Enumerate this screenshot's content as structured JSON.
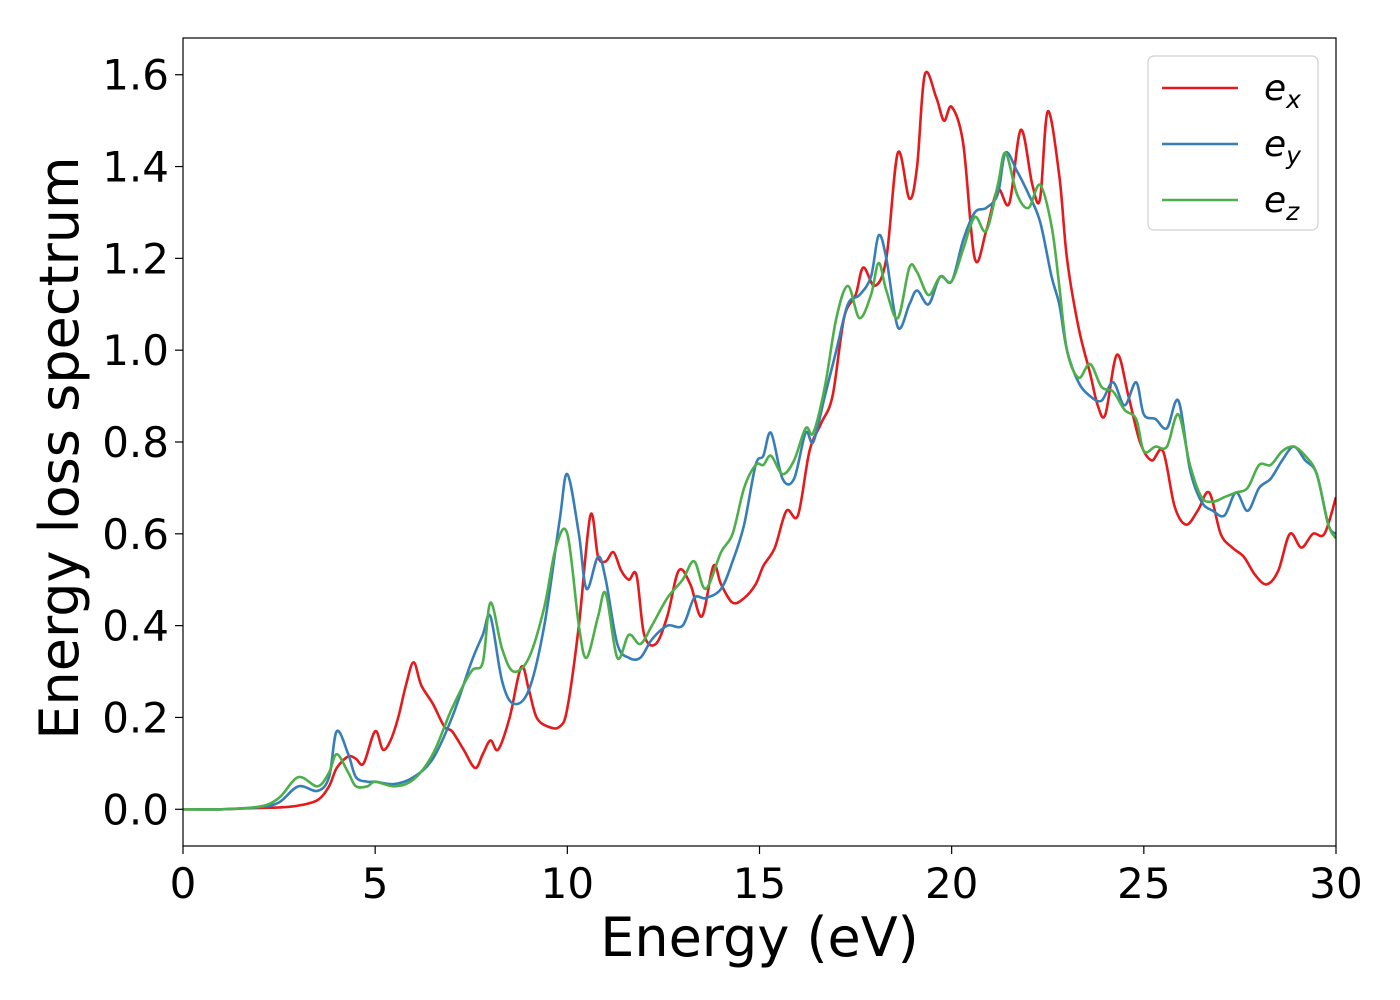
{
  "chart_data": {
    "type": "line",
    "title": "",
    "xlabel": "Energy (eV)",
    "ylabel": "Energy loss spectrum",
    "xlim": [
      0,
      30
    ],
    "ylim": [
      -0.08,
      1.68
    ],
    "xticks": [
      0,
      5,
      10,
      15,
      20,
      25,
      30
    ],
    "yticks": [
      0.0,
      0.2,
      0.4,
      0.6,
      0.8,
      1.0,
      1.2,
      1.4,
      1.6
    ],
    "xtick_labels": [
      "0",
      "5",
      "10",
      "15",
      "20",
      "25",
      "30"
    ],
    "ytick_labels": [
      "0.0",
      "0.2",
      "0.4",
      "0.6",
      "0.8",
      "1.0",
      "1.2",
      "1.4",
      "1.6"
    ],
    "grid": false,
    "legend_position": "top-right",
    "series": [
      {
        "name": "e",
        "subscript": "x",
        "color": "#e41a1c",
        "points": [
          [
            0,
            0
          ],
          [
            1,
            0
          ],
          [
            2,
            0.003
          ],
          [
            2.5,
            0.004
          ],
          [
            3,
            0.008
          ],
          [
            3.5,
            0.02
          ],
          [
            3.8,
            0.05
          ],
          [
            4,
            0.09
          ],
          [
            4.3,
            0.115
          ],
          [
            4.5,
            0.11
          ],
          [
            4.7,
            0.1
          ],
          [
            5,
            0.17
          ],
          [
            5.2,
            0.13
          ],
          [
            5.4,
            0.15
          ],
          [
            5.6,
            0.2
          ],
          [
            5.8,
            0.27
          ],
          [
            6,
            0.32
          ],
          [
            6.2,
            0.27
          ],
          [
            6.5,
            0.23
          ],
          [
            6.8,
            0.18
          ],
          [
            7,
            0.17
          ],
          [
            7.3,
            0.13
          ],
          [
            7.6,
            0.09
          ],
          [
            7.8,
            0.12
          ],
          [
            8,
            0.15
          ],
          [
            8.2,
            0.13
          ],
          [
            8.5,
            0.2
          ],
          [
            8.8,
            0.31
          ],
          [
            9,
            0.26
          ],
          [
            9.2,
            0.2
          ],
          [
            9.5,
            0.18
          ],
          [
            9.8,
            0.18
          ],
          [
            10,
            0.22
          ],
          [
            10.3,
            0.4
          ],
          [
            10.6,
            0.64
          ],
          [
            10.8,
            0.55
          ],
          [
            11,
            0.54
          ],
          [
            11.2,
            0.56
          ],
          [
            11.4,
            0.52
          ],
          [
            11.6,
            0.5
          ],
          [
            11.8,
            0.51
          ],
          [
            12,
            0.38
          ],
          [
            12.3,
            0.36
          ],
          [
            12.6,
            0.42
          ],
          [
            12.9,
            0.52
          ],
          [
            13.2,
            0.49
          ],
          [
            13.5,
            0.42
          ],
          [
            13.8,
            0.53
          ],
          [
            14,
            0.49
          ],
          [
            14.3,
            0.45
          ],
          [
            14.6,
            0.46
          ],
          [
            14.9,
            0.49
          ],
          [
            15.1,
            0.53
          ],
          [
            15.4,
            0.57
          ],
          [
            15.7,
            0.65
          ],
          [
            16,
            0.64
          ],
          [
            16.3,
            0.78
          ],
          [
            16.6,
            0.84
          ],
          [
            16.9,
            0.9
          ],
          [
            17.2,
            1.07
          ],
          [
            17.5,
            1.12
          ],
          [
            17.7,
            1.18
          ],
          [
            18,
            1.14
          ],
          [
            18.3,
            1.2
          ],
          [
            18.6,
            1.43
          ],
          [
            18.9,
            1.33
          ],
          [
            19.1,
            1.4
          ],
          [
            19.3,
            1.6
          ],
          [
            19.6,
            1.55
          ],
          [
            19.8,
            1.5
          ],
          [
            20,
            1.53
          ],
          [
            20.3,
            1.45
          ],
          [
            20.6,
            1.2
          ],
          [
            20.9,
            1.26
          ],
          [
            21.2,
            1.35
          ],
          [
            21.5,
            1.32
          ],
          [
            21.8,
            1.48
          ],
          [
            22.1,
            1.36
          ],
          [
            22.3,
            1.33
          ],
          [
            22.5,
            1.52
          ],
          [
            22.8,
            1.38
          ],
          [
            23,
            1.2
          ],
          [
            23.3,
            1.05
          ],
          [
            23.6,
            0.95
          ],
          [
            23.8,
            0.88
          ],
          [
            24,
            0.86
          ],
          [
            24.3,
            0.99
          ],
          [
            24.6,
            0.9
          ],
          [
            24.9,
            0.8
          ],
          [
            25.2,
            0.76
          ],
          [
            25.5,
            0.78
          ],
          [
            25.8,
            0.66
          ],
          [
            26.1,
            0.62
          ],
          [
            26.4,
            0.65
          ],
          [
            26.7,
            0.69
          ],
          [
            27,
            0.6
          ],
          [
            27.3,
            0.57
          ],
          [
            27.6,
            0.55
          ],
          [
            27.9,
            0.51
          ],
          [
            28.2,
            0.49
          ],
          [
            28.5,
            0.52
          ],
          [
            28.8,
            0.6
          ],
          [
            29.1,
            0.57
          ],
          [
            29.4,
            0.6
          ],
          [
            29.7,
            0.6
          ],
          [
            30,
            0.68
          ]
        ]
      },
      {
        "name": "e",
        "subscript": "y",
        "color": "#377eb8",
        "points": [
          [
            0,
            0
          ],
          [
            1,
            0
          ],
          [
            2,
            0.005
          ],
          [
            2.5,
            0.015
          ],
          [
            3,
            0.05
          ],
          [
            3.5,
            0.04
          ],
          [
            3.8,
            0.07
          ],
          [
            4,
            0.17
          ],
          [
            4.3,
            0.12
          ],
          [
            4.5,
            0.07
          ],
          [
            4.8,
            0.06
          ],
          [
            5,
            0.06
          ],
          [
            5.5,
            0.055
          ],
          [
            6,
            0.07
          ],
          [
            6.5,
            0.11
          ],
          [
            7,
            0.2
          ],
          [
            7.5,
            0.32
          ],
          [
            7.8,
            0.38
          ],
          [
            8,
            0.42
          ],
          [
            8.3,
            0.28
          ],
          [
            8.6,
            0.23
          ],
          [
            9,
            0.26
          ],
          [
            9.4,
            0.4
          ],
          [
            9.8,
            0.63
          ],
          [
            10,
            0.73
          ],
          [
            10.3,
            0.6
          ],
          [
            10.5,
            0.48
          ],
          [
            10.8,
            0.55
          ],
          [
            11,
            0.5
          ],
          [
            11.3,
            0.36
          ],
          [
            11.6,
            0.33
          ],
          [
            11.9,
            0.33
          ],
          [
            12.2,
            0.37
          ],
          [
            12.6,
            0.4
          ],
          [
            13,
            0.4
          ],
          [
            13.3,
            0.46
          ],
          [
            13.6,
            0.46
          ],
          [
            14,
            0.48
          ],
          [
            14.3,
            0.54
          ],
          [
            14.6,
            0.62
          ],
          [
            14.9,
            0.75
          ],
          [
            15.1,
            0.77
          ],
          [
            15.3,
            0.82
          ],
          [
            15.6,
            0.72
          ],
          [
            15.9,
            0.72
          ],
          [
            16.2,
            0.82
          ],
          [
            16.4,
            0.8
          ],
          [
            16.7,
            0.9
          ],
          [
            17,
            1.0
          ],
          [
            17.3,
            1.1
          ],
          [
            17.6,
            1.12
          ],
          [
            17.9,
            1.16
          ],
          [
            18.1,
            1.25
          ],
          [
            18.3,
            1.2
          ],
          [
            18.6,
            1.05
          ],
          [
            18.9,
            1.1
          ],
          [
            19.1,
            1.13
          ],
          [
            19.4,
            1.1
          ],
          [
            19.7,
            1.16
          ],
          [
            20,
            1.15
          ],
          [
            20.3,
            1.24
          ],
          [
            20.6,
            1.3
          ],
          [
            20.9,
            1.31
          ],
          [
            21.2,
            1.34
          ],
          [
            21.4,
            1.43
          ],
          [
            21.7,
            1.39
          ],
          [
            22,
            1.34
          ],
          [
            22.3,
            1.28
          ],
          [
            22.6,
            1.16
          ],
          [
            22.8,
            1.1
          ],
          [
            23,
            1.0
          ],
          [
            23.3,
            0.93
          ],
          [
            23.6,
            0.9
          ],
          [
            23.9,
            0.89
          ],
          [
            24.2,
            0.93
          ],
          [
            24.5,
            0.88
          ],
          [
            24.8,
            0.93
          ],
          [
            25,
            0.86
          ],
          [
            25.3,
            0.85
          ],
          [
            25.6,
            0.83
          ],
          [
            25.9,
            0.89
          ],
          [
            26.2,
            0.74
          ],
          [
            26.5,
            0.67
          ],
          [
            26.8,
            0.65
          ],
          [
            27.1,
            0.64
          ],
          [
            27.4,
            0.69
          ],
          [
            27.7,
            0.65
          ],
          [
            28,
            0.7
          ],
          [
            28.3,
            0.72
          ],
          [
            28.6,
            0.76
          ],
          [
            28.9,
            0.79
          ],
          [
            29.2,
            0.76
          ],
          [
            29.5,
            0.73
          ],
          [
            29.8,
            0.62
          ],
          [
            30,
            0.6
          ]
        ]
      },
      {
        "name": "e",
        "subscript": "z",
        "color": "#4daf4a",
        "points": [
          [
            0,
            0
          ],
          [
            1,
            0
          ],
          [
            2,
            0.006
          ],
          [
            2.5,
            0.025
          ],
          [
            3,
            0.07
          ],
          [
            3.5,
            0.05
          ],
          [
            3.8,
            0.08
          ],
          [
            4,
            0.12
          ],
          [
            4.3,
            0.08
          ],
          [
            4.5,
            0.05
          ],
          [
            4.8,
            0.05
          ],
          [
            5,
            0.06
          ],
          [
            5.5,
            0.05
          ],
          [
            6,
            0.065
          ],
          [
            6.5,
            0.12
          ],
          [
            7,
            0.22
          ],
          [
            7.5,
            0.3
          ],
          [
            7.8,
            0.32
          ],
          [
            8,
            0.45
          ],
          [
            8.3,
            0.35
          ],
          [
            8.6,
            0.3
          ],
          [
            9,
            0.33
          ],
          [
            9.4,
            0.44
          ],
          [
            9.7,
            0.57
          ],
          [
            10,
            0.6
          ],
          [
            10.3,
            0.4
          ],
          [
            10.5,
            0.33
          ],
          [
            10.8,
            0.42
          ],
          [
            11,
            0.47
          ],
          [
            11.3,
            0.33
          ],
          [
            11.6,
            0.38
          ],
          [
            11.9,
            0.36
          ],
          [
            12.2,
            0.4
          ],
          [
            12.6,
            0.46
          ],
          [
            13,
            0.5
          ],
          [
            13.3,
            0.54
          ],
          [
            13.6,
            0.48
          ],
          [
            14,
            0.56
          ],
          [
            14.3,
            0.6
          ],
          [
            14.6,
            0.7
          ],
          [
            14.9,
            0.75
          ],
          [
            15.1,
            0.75
          ],
          [
            15.3,
            0.77
          ],
          [
            15.6,
            0.73
          ],
          [
            15.9,
            0.76
          ],
          [
            16.2,
            0.83
          ],
          [
            16.4,
            0.82
          ],
          [
            16.7,
            0.92
          ],
          [
            17,
            1.07
          ],
          [
            17.3,
            1.14
          ],
          [
            17.6,
            1.07
          ],
          [
            17.9,
            1.12
          ],
          [
            18.1,
            1.19
          ],
          [
            18.3,
            1.13
          ],
          [
            18.6,
            1.07
          ],
          [
            18.9,
            1.18
          ],
          [
            19.1,
            1.17
          ],
          [
            19.4,
            1.12
          ],
          [
            19.7,
            1.16
          ],
          [
            20,
            1.15
          ],
          [
            20.3,
            1.22
          ],
          [
            20.6,
            1.29
          ],
          [
            20.9,
            1.26
          ],
          [
            21.2,
            1.36
          ],
          [
            21.4,
            1.43
          ],
          [
            21.7,
            1.34
          ],
          [
            22,
            1.31
          ],
          [
            22.3,
            1.36
          ],
          [
            22.6,
            1.27
          ],
          [
            22.8,
            1.14
          ],
          [
            23,
            1.0
          ],
          [
            23.3,
            0.94
          ],
          [
            23.6,
            0.97
          ],
          [
            23.9,
            0.92
          ],
          [
            24.2,
            0.91
          ],
          [
            24.5,
            0.87
          ],
          [
            24.8,
            0.85
          ],
          [
            25,
            0.78
          ],
          [
            25.3,
            0.79
          ],
          [
            25.6,
            0.79
          ],
          [
            25.9,
            0.86
          ],
          [
            26.2,
            0.75
          ],
          [
            26.5,
            0.68
          ],
          [
            26.8,
            0.67
          ],
          [
            27.1,
            0.68
          ],
          [
            27.4,
            0.69
          ],
          [
            27.7,
            0.7
          ],
          [
            28,
            0.75
          ],
          [
            28.3,
            0.75
          ],
          [
            28.6,
            0.78
          ],
          [
            28.9,
            0.79
          ],
          [
            29.2,
            0.77
          ],
          [
            29.5,
            0.73
          ],
          [
            29.8,
            0.62
          ],
          [
            30,
            0.59
          ]
        ]
      }
    ]
  }
}
